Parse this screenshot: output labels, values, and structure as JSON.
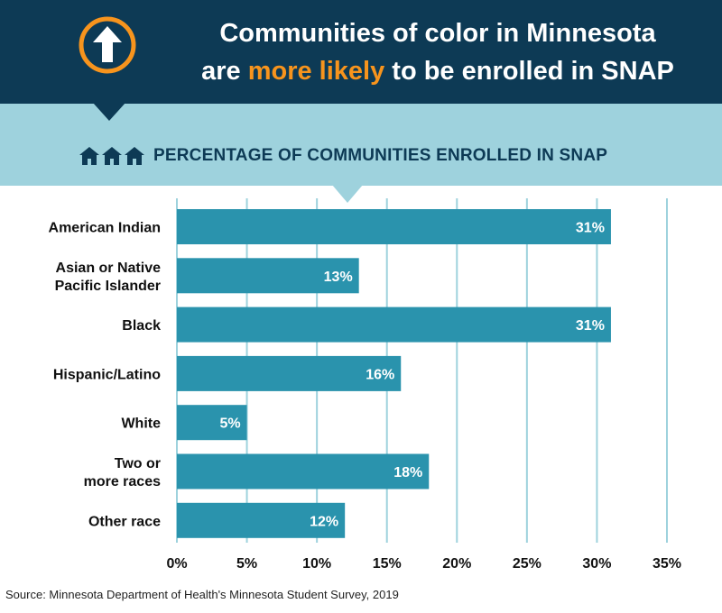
{
  "header": {
    "title_line1": "Communities of color in Minnesota",
    "title_line2_pre": "are ",
    "title_line2_highlight": "more likely",
    "title_line2_post": " to be enrolled in SNAP",
    "icon": "up-arrow-icon",
    "colors": {
      "background": "#0d3a55",
      "highlight": "#f7941d",
      "band": "#9ed2dd"
    }
  },
  "chart_data": {
    "type": "bar",
    "orientation": "horizontal",
    "title": "PERCENTAGE OF COMMUNITIES ENROLLED IN SNAP",
    "title_icon": "houses-icon",
    "categories": [
      [
        "American Indian"
      ],
      [
        "Asian or Native",
        "Pacific Islander"
      ],
      [
        "Black"
      ],
      [
        "Hispanic/Latino"
      ],
      [
        "White"
      ],
      [
        "Two or",
        "more races"
      ],
      [
        "Other race"
      ]
    ],
    "values": [
      31,
      13,
      31,
      16,
      5,
      18,
      12
    ],
    "value_labels": [
      "31%",
      "13%",
      "31%",
      "16%",
      "5%",
      "18%",
      "12%"
    ],
    "xlim": [
      0,
      35
    ],
    "x_ticks": [
      0,
      5,
      10,
      15,
      20,
      25,
      30,
      35
    ],
    "x_tick_labels": [
      "0%",
      "5%",
      "10%",
      "15%",
      "20%",
      "25%",
      "30%",
      "35%"
    ],
    "grid": true,
    "bar_color": "#2a93ad",
    "grid_color": "#9ed2dd"
  },
  "source": "Source: Minnesota Department of Health's Minnesota Student Survey, 2019"
}
